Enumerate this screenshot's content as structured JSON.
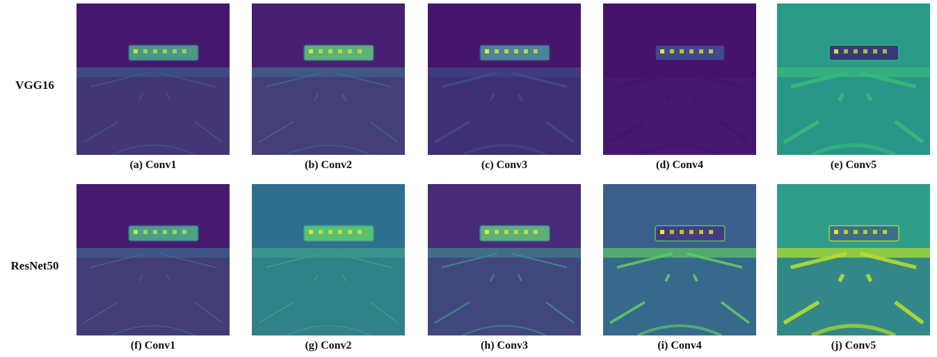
{
  "rows": [
    {
      "label": "VGG16",
      "panels": [
        {
          "caption": "(a) Conv1"
        },
        {
          "caption": "(b) Conv2"
        },
        {
          "caption": "(c) Conv3"
        },
        {
          "caption": "(d) Conv4"
        },
        {
          "caption": "(e) Conv5"
        }
      ]
    },
    {
      "label": "ResNet50",
      "panels": [
        {
          "caption": "(f) Conv1"
        },
        {
          "caption": "(g) Conv2"
        },
        {
          "caption": "(h) Conv3"
        },
        {
          "caption": "(i) Conv4"
        },
        {
          "caption": "(j) Conv5"
        }
      ]
    }
  ]
}
